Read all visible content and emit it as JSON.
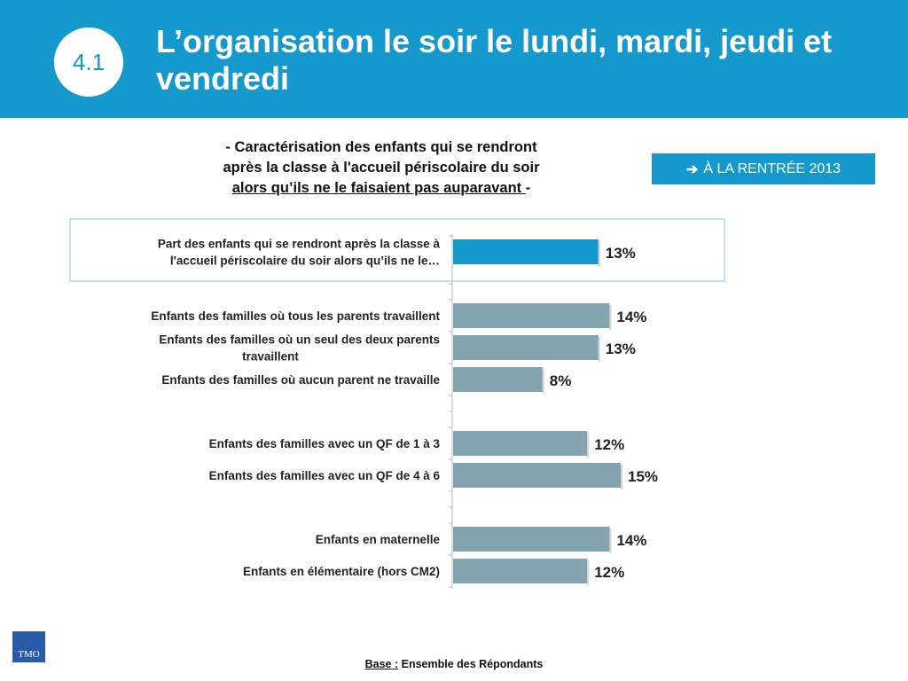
{
  "header": {
    "badge": "4.1",
    "title": "L’organisation le soir le lundi, mardi, jeudi et vendredi"
  },
  "subtitle": {
    "line1": "- Caractérisation des enfants qui se rendront",
    "line2": "après la classe à l'accueil périscolaire du soir",
    "line3_underlined": "alors qu’ils ne le faisaient pas auparavant ",
    "line3_tail": "-"
  },
  "tag": {
    "arrow": "➔",
    "text": "À LA RENTRÉE 2013"
  },
  "colors": {
    "brand": "#1599cc",
    "bar_highlight": "#1599cc",
    "bar_default": "#83a4ae"
  },
  "chart_data": {
    "type": "bar",
    "orientation": "horizontal",
    "categories": [
      [
        "Part des enfants qui se rendront  après la classe à",
        "l'accueil périscolaire du soir alors qu’ils ne le…"
      ],
      [
        "Enfants des familles où tous les parents travaillent"
      ],
      [
        "Enfants des familles où un seul des deux parents",
        "travaillent"
      ],
      [
        "Enfants des familles où aucun parent ne travaille"
      ],
      [
        "Enfants des familles avec un QF de 1 à 3"
      ],
      [
        "Enfants des familles avec un QF de 4 à 6"
      ],
      [
        "Enfants en maternelle"
      ],
      [
        "Enfants en élémentaire (hors CM2)"
      ]
    ],
    "values": [
      13,
      14,
      13,
      8,
      12,
      15,
      14,
      12
    ],
    "value_labels": [
      "13%",
      "14%",
      "13%",
      "8%",
      "12%",
      "15%",
      "14%",
      "12%"
    ],
    "highlighted_index": 0,
    "xlim": [
      0,
      20
    ]
  },
  "footer": {
    "logo_text": "TMO",
    "base_label": "Base :",
    "base_text": " Ensemble des Répondants"
  }
}
